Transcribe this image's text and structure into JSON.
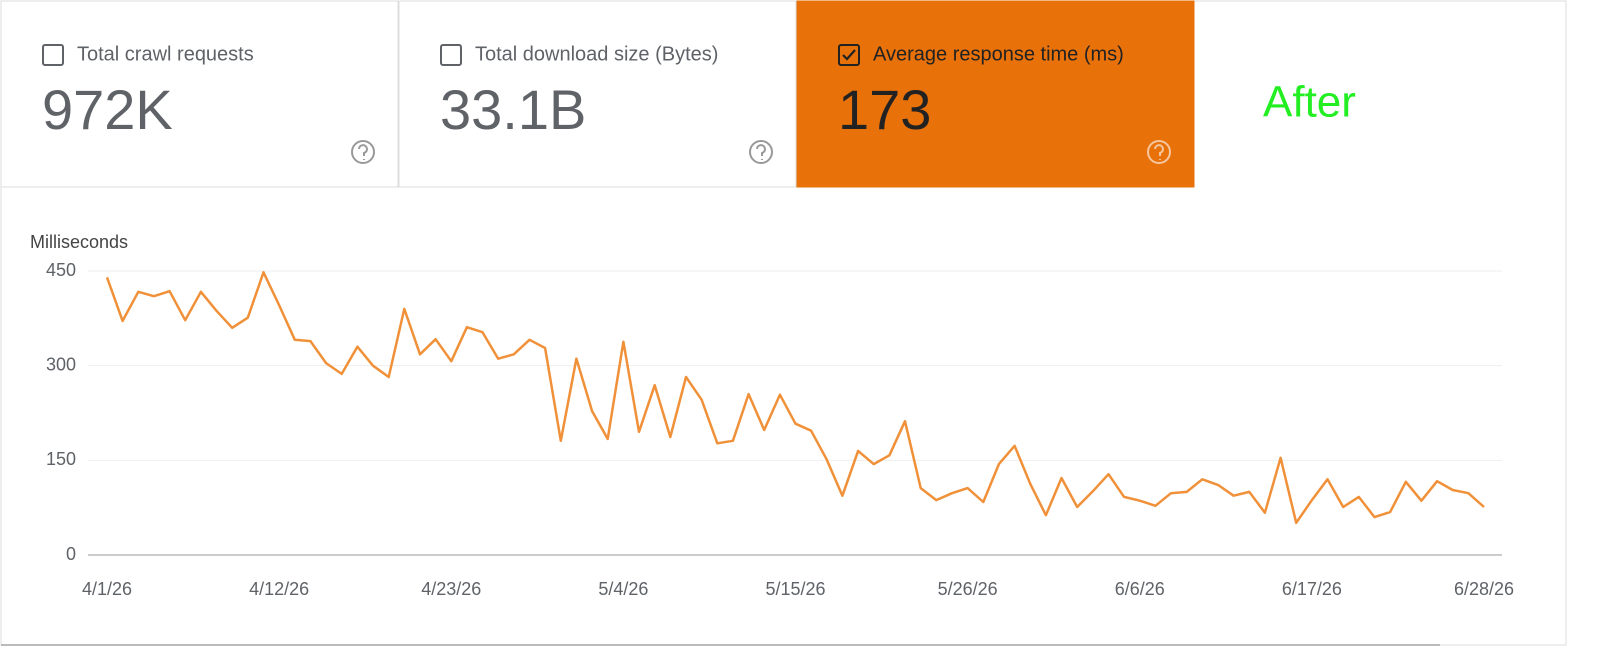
{
  "cards": [
    {
      "label": "Total crawl requests",
      "value": "972K",
      "checked": false
    },
    {
      "label": "Total download size (Bytes)",
      "value": "33.1B",
      "checked": false
    },
    {
      "label": "Average response time (ms)",
      "value": "173",
      "checked": true
    }
  ],
  "annotation": "After",
  "chart_data": {
    "type": "line",
    "y_label": "Milliseconds",
    "color": "#f0913a",
    "grid": true,
    "x": [
      "4/1/26",
      "4/2/26",
      "4/3/26",
      "4/4/26",
      "4/5/26",
      "4/6/26",
      "4/7/26",
      "4/8/26",
      "4/9/26",
      "4/10/26",
      "4/11/26",
      "4/12/26",
      "4/13/26",
      "4/14/26",
      "4/15/26",
      "4/16/26",
      "4/17/26",
      "4/18/26",
      "4/19/26",
      "4/20/26",
      "4/21/26",
      "4/22/26",
      "4/23/26",
      "4/24/26",
      "4/25/26",
      "4/26/26",
      "4/27/26",
      "4/28/26",
      "4/29/26",
      "4/30/26",
      "5/1/26",
      "5/2/26",
      "5/3/26",
      "5/4/26",
      "5/5/26",
      "5/6/26",
      "5/7/26",
      "5/8/26",
      "5/9/26",
      "5/10/26",
      "5/11/26",
      "5/12/26",
      "5/13/26",
      "5/14/26",
      "5/15/26",
      "5/16/26",
      "5/17/26",
      "5/18/26",
      "5/19/26",
      "5/20/26",
      "5/21/26",
      "5/22/26",
      "5/23/26",
      "5/24/26",
      "5/25/26",
      "5/26/26",
      "5/27/26",
      "5/28/26",
      "5/29/26",
      "5/30/26",
      "5/31/26",
      "6/1/26",
      "6/2/26",
      "6/3/26",
      "6/4/26",
      "6/5/26",
      "6/6/26",
      "6/7/26",
      "6/8/26",
      "6/9/26",
      "6/10/26",
      "6/11/26",
      "6/12/26",
      "6/13/26",
      "6/14/26",
      "6/15/26",
      "6/16/26",
      "6/17/26",
      "6/18/26",
      "6/19/26",
      "6/20/26",
      "6/21/26",
      "6/22/26",
      "6/23/26",
      "6/24/26",
      "6/25/26",
      "6/26/26",
      "6/27/26",
      "6/28/26"
    ],
    "values": [
      440,
      371,
      417,
      410,
      418,
      372,
      417,
      387,
      360,
      376,
      448,
      396,
      341,
      339,
      304,
      287,
      330,
      300,
      282,
      390,
      318,
      342,
      307,
      361,
      353,
      311,
      318,
      341,
      328,
      181,
      311,
      228,
      184,
      338,
      195,
      269,
      187,
      282,
      246,
      177,
      181,
      255,
      198,
      254,
      208,
      197,
      151,
      94,
      165,
      144,
      158,
      212,
      106,
      87,
      98,
      106,
      84,
      144,
      173,
      113,
      63,
      122,
      76,
      101,
      128,
      92,
      86,
      78,
      98,
      100,
      120,
      111,
      94,
      100,
      67,
      154,
      51,
      87,
      120,
      76,
      92,
      60,
      68,
      116,
      86,
      117,
      103,
      98,
      76
    ],
    "xticks": [
      "4/1/26",
      "4/12/26",
      "4/23/26",
      "5/4/26",
      "5/15/26",
      "5/26/26",
      "6/6/26",
      "6/17/26",
      "6/28/26"
    ],
    "ylim": [
      0,
      450
    ],
    "yticks": [
      0,
      150,
      300,
      450
    ]
  }
}
